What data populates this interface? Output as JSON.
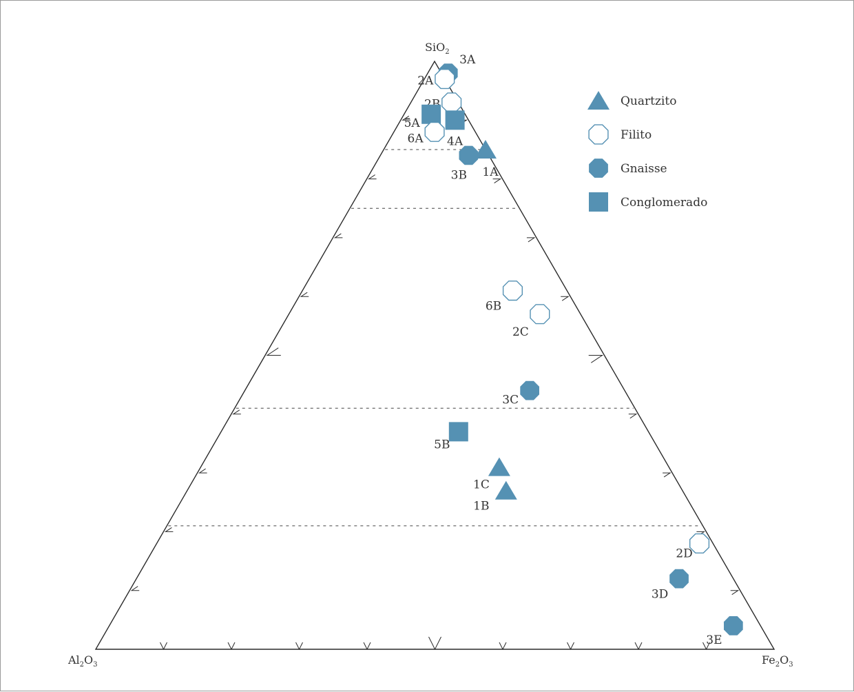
{
  "chart_data": {
    "type": "scatter",
    "subtype": "ternary",
    "vertices": {
      "top": {
        "main": "SiO",
        "sub": "2",
        "tail": ""
      },
      "left": {
        "main": "Al",
        "sub": "2",
        "mid": "O",
        "sub2": "3"
      },
      "right": {
        "main": "Fe",
        "sub": "2",
        "mid": "O",
        "sub2": "3"
      }
    },
    "grid": "dashed horizontal lines at SiO2 = 0.85, 0.75, 0.41, 0.21",
    "legend_placement": "top-right",
    "legend": [
      {
        "key": "quartzito",
        "label": "Quartzito",
        "marker": "triangle"
      },
      {
        "key": "filito",
        "label": "Filito",
        "marker": "octagon-open"
      },
      {
        "key": "gnaisse",
        "label": "Gnaisse",
        "marker": "octagon-filled"
      },
      {
        "key": "conglomerado",
        "label": "Conglomerado",
        "marker": "square"
      }
    ],
    "colors": {
      "marker": "#5591b3",
      "axis": "#2a2a2a",
      "text": "#333333"
    },
    "points": [
      {
        "label": "3A",
        "group": "gnaisse",
        "SiO2": 0.98,
        "Fe2O3": 0.03
      },
      {
        "label": "2A",
        "group": "filito",
        "SiO2": 0.97,
        "Fe2O3": 0.03
      },
      {
        "label": "2B",
        "group": "filito",
        "SiO2": 0.93,
        "Fe2O3": 0.06
      },
      {
        "label": "5A",
        "group": "conglomerado",
        "SiO2": 0.91,
        "Fe2O3": 0.04
      },
      {
        "label": "4A",
        "group": "conglomerado",
        "SiO2": 0.9,
        "Fe2O3": 0.08
      },
      {
        "label": "6A",
        "group": "filito",
        "SiO2": 0.88,
        "Fe2O3": 0.06
      },
      {
        "label": "3B",
        "group": "gnaisse",
        "SiO2": 0.84,
        "Fe2O3": 0.13
      },
      {
        "label": "1A",
        "group": "quartzito",
        "SiO2": 0.85,
        "Fe2O3": 0.15
      },
      {
        "label": "6B",
        "group": "filito",
        "SiO2": 0.61,
        "Fe2O3": 0.31
      },
      {
        "label": "2C",
        "group": "filito",
        "SiO2": 0.57,
        "Fe2O3": 0.37
      },
      {
        "label": "3C",
        "group": "gnaisse",
        "SiO2": 0.44,
        "Fe2O3": 0.42
      },
      {
        "label": "5B",
        "group": "conglomerado",
        "SiO2": 0.37,
        "Fe2O3": 0.35
      },
      {
        "label": "1C",
        "group": "quartzito",
        "SiO2": 0.31,
        "Fe2O3": 0.44
      },
      {
        "label": "1B",
        "group": "quartzito",
        "SiO2": 0.27,
        "Fe2O3": 0.47
      },
      {
        "label": "2D",
        "group": "filito",
        "SiO2": 0.18,
        "Fe2O3": 0.8
      },
      {
        "label": "3D",
        "group": "gnaisse",
        "SiO2": 0.12,
        "Fe2O3": 0.8
      },
      {
        "label": "3E",
        "group": "gnaisse",
        "SiO2": 0.04,
        "Fe2O3": 0.92
      }
    ]
  }
}
